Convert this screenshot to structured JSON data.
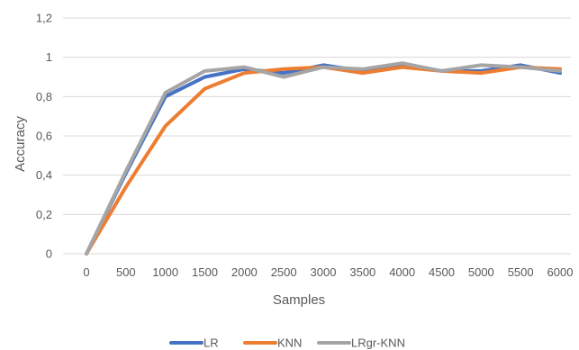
{
  "chart_data": {
    "type": "line",
    "title": "",
    "xlabel": "Samples",
    "ylabel": "Accuracy",
    "x": [
      0,
      500,
      1000,
      1500,
      2000,
      2500,
      3000,
      3500,
      4000,
      4500,
      5000,
      5500,
      6000
    ],
    "x_tick_labels": [
      "0",
      "500",
      "1000",
      "1500",
      "2000",
      "2500",
      "3000",
      "3500",
      "4000",
      "4500",
      "5000",
      "5500",
      "6000"
    ],
    "y_tick_labels": [
      "0",
      "0,2",
      "0,4",
      "0,6",
      "0,8",
      "1",
      "1,2"
    ],
    "y_ticks": [
      0,
      0.2,
      0.4,
      0.6,
      0.8,
      1.0,
      1.2
    ],
    "ylim": [
      0,
      1.2
    ],
    "grid": "horizontal",
    "legend_position": "bottom",
    "series": [
      {
        "name": "LR",
        "color": "#4472c4",
        "values": [
          0,
          0.41,
          0.8,
          0.9,
          0.94,
          0.92,
          0.96,
          0.93,
          0.96,
          0.93,
          0.93,
          0.96,
          0.92
        ]
      },
      {
        "name": "KNN",
        "color": "#ed7d31",
        "values": [
          0,
          0.34,
          0.65,
          0.84,
          0.92,
          0.94,
          0.95,
          0.92,
          0.95,
          0.93,
          0.92,
          0.95,
          0.94
        ]
      },
      {
        "name": "LRgr-KNN",
        "color": "#a5a5a5",
        "values": [
          0,
          0.42,
          0.82,
          0.93,
          0.95,
          0.9,
          0.95,
          0.94,
          0.97,
          0.93,
          0.96,
          0.95,
          0.93
        ]
      }
    ]
  }
}
